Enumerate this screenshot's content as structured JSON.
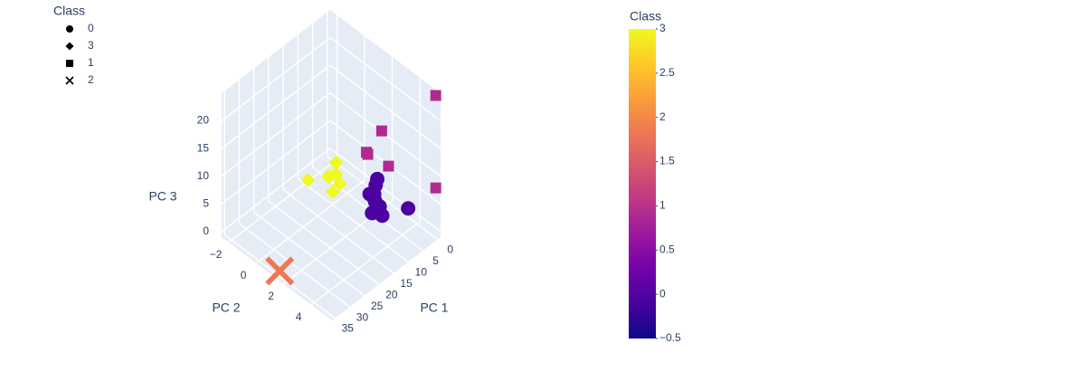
{
  "chart_data": {
    "type": "scatter3d",
    "legend_title": "Class",
    "xaxis_title": "PC 1",
    "yaxis_title": "PC 2",
    "zaxis_title": "PC 3",
    "xlim": [
      -1,
      36
    ],
    "ylim": [
      -2.5,
      5.5
    ],
    "zlim": [
      -1,
      25
    ],
    "xticks": [
      0,
      5,
      10,
      15,
      20,
      25,
      30,
      35
    ],
    "yticks": [
      {
        "value": -2,
        "label": "−2"
      },
      0,
      2,
      4
    ],
    "zticks": [
      0,
      5,
      10,
      15,
      20
    ],
    "series": [
      {
        "name": "0",
        "symbol": "circle",
        "color": "#4c02a1",
        "x": [
          8,
          9,
          10,
          7,
          11,
          9,
          8,
          12,
          10,
          6,
          9,
          3
        ],
        "y": [
          2.6,
          2.9,
          3.1,
          2.5,
          3.2,
          2.8,
          3.0,
          3.3,
          2.7,
          2.4,
          3.4,
          4.0
        ],
        "z": [
          5,
          4.5,
          5.5,
          6,
          4,
          5,
          3.5,
          4.5,
          6,
          6.5,
          3,
          3
        ]
      },
      {
        "name": "3",
        "symbol": "diamond",
        "color": "#f0f921",
        "x": [
          14,
          15,
          13,
          16,
          17,
          19.8,
          15,
          14
        ],
        "y": [
          1.1,
          1.3,
          0.9,
          1.0,
          1.5,
          0.3,
          0.8,
          1.4
        ],
        "z": [
          8,
          9,
          9.5,
          8.5,
          7,
          8,
          7.5,
          7
        ]
      },
      {
        "name": "1",
        "symbol": "square",
        "color": "#b12a90",
        "x": [
          -0.3,
          4.5,
          6.4,
          6.4,
          6.4,
          -0.3
        ],
        "y": [
          5.3,
          2.4,
          1.7,
          1.8,
          3.3,
          5.3
        ],
        "z": [
          24.5,
          14.6,
          10.2,
          10,
          10.7,
          7.8
        ]
      },
      {
        "name": "2",
        "symbol": "x",
        "color": "#ed7953",
        "x": [
          35
        ],
        "y": [
          1.5
        ],
        "z": [
          0
        ]
      }
    ],
    "colorbar": {
      "title": "Class",
      "range": [
        -0.5,
        3
      ],
      "ticks": [
        {
          "value": -0.5,
          "label": "−0.5"
        },
        0,
        0.5,
        1,
        1.5,
        2,
        2.5,
        3
      ],
      "colorscale": [
        "#0d0887",
        "#46039f",
        "#7201a8",
        "#9c179e",
        "#bd3786",
        "#d8576b",
        "#ed7953",
        "#fb9f3a",
        "#fdca26",
        "#f0f921"
      ]
    }
  }
}
